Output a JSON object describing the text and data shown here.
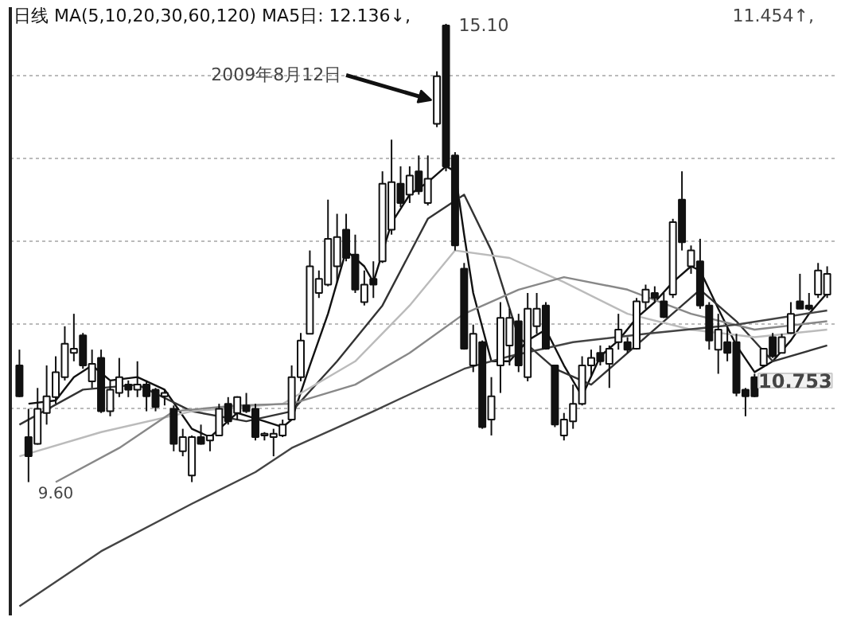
{
  "chart_data": {
    "type": "candlestick",
    "title": "日线 MA(5,10,20,30,60,120) MA5日: 12.136↓,",
    "annotations": [
      "11.454↑,",
      "2009年8月12日",
      "15.10",
      "9.60",
      "10.753"
    ],
    "categories": [
      null,
      null,
      null,
      null,
      null,
      null,
      null,
      null,
      null,
      null,
      null,
      null,
      null,
      null,
      null,
      null,
      null,
      null,
      null,
      null,
      null,
      null,
      null,
      null,
      null,
      null,
      null,
      null,
      null,
      null,
      null,
      null,
      null,
      null,
      null,
      null,
      null,
      null,
      null,
      null,
      null,
      null,
      null,
      null,
      null,
      null,
      null,
      null,
      null,
      null,
      null,
      null,
      null,
      null,
      null,
      null,
      null,
      null,
      null,
      null,
      null,
      null,
      null,
      null,
      null,
      null,
      null,
      null,
      null,
      null,
      null,
      null,
      null,
      null,
      null,
      null,
      null,
      null,
      null,
      null,
      null,
      null,
      null,
      null,
      null,
      null,
      null,
      null,
      null,
      null
    ],
    "ohlc": [
      [
        11.0,
        11.19,
        10.62,
        10.63
      ],
      [
        10.14,
        10.48,
        9.6,
        9.91
      ],
      [
        10.06,
        10.73,
        10.05,
        10.48
      ],
      [
        10.43,
        11.0,
        10.29,
        10.63
      ],
      [
        10.62,
        11.11,
        10.54,
        10.92
      ],
      [
        10.86,
        11.47,
        10.82,
        11.26
      ],
      [
        11.15,
        11.62,
        11.05,
        11.2
      ],
      [
        11.36,
        11.39,
        10.96,
        11.0
      ],
      [
        10.81,
        11.19,
        10.73,
        11.02
      ],
      [
        11.09,
        11.19,
        10.43,
        10.45
      ],
      [
        10.45,
        10.81,
        10.39,
        10.71
      ],
      [
        10.67,
        11.09,
        10.62,
        10.86
      ],
      [
        10.77,
        10.82,
        10.62,
        10.71
      ],
      [
        10.71,
        11.05,
        10.62,
        10.77
      ],
      [
        10.77,
        10.82,
        10.45,
        10.63
      ],
      [
        10.71,
        10.73,
        10.45,
        10.5
      ],
      [
        10.63,
        10.71,
        10.52,
        10.67
      ],
      [
        10.48,
        10.52,
        9.97,
        10.06
      ],
      [
        9.97,
        10.24,
        9.91,
        10.14
      ],
      [
        9.68,
        10.16,
        9.6,
        10.14
      ],
      [
        10.14,
        10.29,
        10.05,
        10.06
      ],
      [
        10.1,
        10.16,
        9.97,
        10.16
      ],
      [
        10.16,
        10.54,
        10.16,
        10.48
      ],
      [
        10.54,
        10.62,
        10.29,
        10.33
      ],
      [
        10.43,
        10.63,
        10.35,
        10.62
      ],
      [
        10.52,
        10.67,
        10.43,
        10.45
      ],
      [
        10.48,
        10.54,
        10.1,
        10.14
      ],
      [
        10.16,
        10.2,
        10.1,
        10.18
      ],
      [
        10.14,
        10.24,
        9.91,
        10.18
      ],
      [
        10.16,
        10.35,
        10.14,
        10.29
      ],
      [
        10.35,
        11.0,
        10.35,
        10.86
      ],
      [
        10.86,
        11.39,
        10.81,
        11.3
      ],
      [
        11.38,
        12.38,
        11.38,
        12.19
      ],
      [
        11.87,
        12.14,
        11.81,
        12.04
      ],
      [
        11.97,
        12.99,
        11.95,
        12.52
      ],
      [
        12.19,
        12.82,
        12.0,
        12.54
      ],
      [
        12.63,
        12.82,
        12.25,
        12.29
      ],
      [
        12.33,
        12.57,
        11.87,
        11.91
      ],
      [
        11.76,
        12.14,
        11.72,
        11.97
      ],
      [
        12.04,
        12.25,
        11.81,
        11.97
      ],
      [
        12.25,
        13.33,
        12.23,
        13.18
      ],
      [
        12.63,
        13.71,
        12.57,
        13.2
      ],
      [
        13.18,
        13.39,
        12.9,
        12.95
      ],
      [
        13.05,
        13.39,
        12.95,
        13.28
      ],
      [
        13.33,
        13.52,
        13.05,
        13.09
      ],
      [
        12.95,
        13.52,
        12.92,
        13.24
      ],
      [
        13.9,
        14.53,
        13.86,
        14.47
      ],
      [
        15.08,
        15.1,
        13.33,
        13.39
      ],
      [
        13.52,
        13.56,
        12.38,
        12.44
      ],
      [
        12.16,
        12.23,
        11.19,
        11.2
      ],
      [
        11.0,
        11.49,
        10.92,
        11.38
      ],
      [
        11.28,
        11.3,
        10.24,
        10.26
      ],
      [
        10.35,
        10.86,
        10.16,
        10.63
      ],
      [
        11.0,
        11.76,
        10.67,
        11.57
      ],
      [
        11.24,
        11.68,
        11.0,
        11.57
      ],
      [
        11.53,
        11.62,
        10.92,
        11.0
      ],
      [
        10.86,
        11.87,
        10.81,
        11.68
      ],
      [
        11.47,
        11.87,
        11.38,
        11.68
      ],
      [
        11.72,
        11.76,
        11.19,
        11.2
      ],
      [
        11.0,
        11.0,
        10.26,
        10.29
      ],
      [
        10.16,
        10.43,
        10.1,
        10.35
      ],
      [
        10.33,
        10.77,
        10.24,
        10.54
      ],
      [
        10.54,
        11.11,
        10.52,
        11.0
      ],
      [
        11.0,
        11.19,
        10.86,
        11.09
      ],
      [
        11.15,
        11.24,
        11.0,
        11.05
      ],
      [
        11.02,
        11.24,
        10.73,
        11.2
      ],
      [
        11.28,
        11.62,
        11.19,
        11.43
      ],
      [
        11.28,
        11.34,
        11.15,
        11.19
      ],
      [
        11.2,
        11.81,
        11.19,
        11.77
      ],
      [
        11.76,
        11.97,
        11.68,
        11.91
      ],
      [
        11.87,
        11.95,
        11.76,
        11.81
      ],
      [
        11.77,
        11.87,
        11.57,
        11.58
      ],
      [
        11.85,
        12.76,
        11.81,
        12.72
      ],
      [
        12.99,
        13.33,
        12.38,
        12.48
      ],
      [
        12.19,
        12.44,
        12.1,
        12.38
      ],
      [
        12.25,
        12.52,
        11.68,
        11.72
      ],
      [
        11.72,
        11.76,
        11.19,
        11.3
      ],
      [
        11.19,
        11.62,
        10.9,
        11.43
      ],
      [
        11.28,
        11.47,
        11.05,
        11.15
      ],
      [
        11.28,
        11.38,
        10.63,
        10.67
      ],
      [
        10.71,
        10.73,
        10.39,
        10.63
      ],
      [
        10.86,
        10.9,
        10.62,
        10.63
      ],
      [
        11.0,
        11.2,
        11.0,
        11.2
      ],
      [
        11.34,
        11.39,
        11.09,
        11.11
      ],
      [
        11.15,
        11.38,
        11.15,
        11.34
      ],
      [
        11.39,
        11.76,
        11.38,
        11.62
      ],
      [
        11.77,
        12.1,
        11.68,
        11.68
      ],
      [
        11.72,
        11.87,
        11.66,
        11.68
      ],
      [
        11.85,
        12.23,
        11.81,
        12.14
      ],
      [
        11.85,
        12.19,
        11.81,
        12.1
      ]
    ],
    "series": [
      {
        "type": "line",
        "color": "#111111",
        "values": [
          null,
          10.54,
          null,
          null,
          10.58,
          null,
          10.86,
          null,
          11.0,
          null,
          10.82,
          null,
          null,
          10.86,
          null,
          null,
          10.71,
          null,
          null,
          10.24,
          null,
          10.14,
          null,
          null,
          10.43,
          null,
          null,
          10.33,
          null,
          10.26,
          10.35,
          null,
          11.0,
          null,
          11.62,
          null,
          12.38,
          null,
          12.19,
          12.0,
          null,
          12.71,
          null,
          13.05,
          null,
          13.2,
          null,
          13.39,
          13.33,
          12.57,
          11.87,
          null,
          11.05,
          null,
          11.05,
          null,
          11.3,
          null,
          11.43,
          null,
          11.0,
          null,
          10.63,
          null,
          11.11,
          null,
          11.3,
          null,
          11.57,
          null,
          11.76,
          null,
          12.0,
          null,
          12.19,
          12.14,
          null,
          11.68,
          null,
          11.24,
          null,
          10.92,
          null,
          11.05,
          null,
          11.3,
          null,
          11.62,
          null,
          11.87
        ]
      },
      {
        "type": "line",
        "color": "#333333",
        "values": [
          10.29,
          null,
          null,
          null,
          null,
          null,
          null,
          10.71,
          null,
          null,
          null,
          null,
          null,
          10.77,
          null,
          null,
          null,
          null,
          null,
          10.45,
          null,
          null,
          null,
          null,
          null,
          10.33,
          null,
          null,
          null,
          null,
          10.45,
          null,
          null,
          null,
          null,
          11.05,
          null,
          null,
          null,
          null,
          11.72,
          null,
          null,
          null,
          null,
          12.76,
          null,
          null,
          null,
          13.05,
          null,
          null,
          12.38,
          null,
          null,
          11.34,
          null,
          null,
          null,
          10.96,
          null,
          null,
          null,
          10.77,
          null,
          null,
          null,
          11.15,
          null,
          null,
          null,
          11.53,
          null,
          null,
          null,
          11.91,
          null,
          null,
          null,
          11.53,
          null,
          null,
          null,
          11.05,
          null,
          null,
          null,
          null,
          null,
          11.24
        ]
      },
      {
        "type": "line",
        "color": "#bbbbbb",
        "values": [
          9.91,
          null,
          null,
          null,
          null,
          null,
          null,
          null,
          null,
          10.2,
          null,
          null,
          null,
          null,
          null,
          null,
          null,
          null,
          null,
          10.45,
          null,
          null,
          null,
          null,
          null,
          null,
          null,
          null,
          null,
          10.54,
          null,
          null,
          null,
          null,
          null,
          null,
          null,
          11.05,
          null,
          null,
          null,
          null,
          null,
          11.72,
          null,
          null,
          null,
          null,
          12.38,
          null,
          null,
          null,
          null,
          null,
          12.29,
          null,
          null,
          null,
          null,
          null,
          12.0,
          null,
          null,
          null,
          null,
          null,
          null,
          11.62,
          null,
          null,
          null,
          null,
          null,
          null,
          11.43,
          null,
          null,
          null,
          null,
          null,
          null,
          11.34,
          null,
          null,
          null,
          null,
          null,
          null,
          null,
          11.43
        ]
      },
      {
        "type": "line",
        "color": "#888888",
        "values": [
          null,
          null,
          null,
          null,
          9.6,
          null,
          null,
          null,
          null,
          null,
          null,
          10.01,
          null,
          null,
          null,
          null,
          null,
          10.45,
          null,
          null,
          null,
          null,
          null,
          null,
          10.52,
          null,
          null,
          null,
          null,
          null,
          10.54,
          null,
          null,
          null,
          null,
          null,
          null,
          10.77,
          null,
          null,
          null,
          null,
          null,
          11.15,
          null,
          null,
          null,
          null,
          null,
          11.62,
          null,
          null,
          null,
          null,
          null,
          11.91,
          null,
          null,
          null,
          null,
          12.06,
          null,
          null,
          null,
          null,
          null,
          null,
          11.91,
          null,
          null,
          null,
          null,
          null,
          null,
          11.62,
          null,
          null,
          null,
          null,
          null,
          null,
          11.43,
          null,
          null,
          null,
          null,
          null,
          null,
          null,
          11.53
        ]
      },
      {
        "type": "line",
        "color": "#444444",
        "values": [
          8.11,
          null,
          null,
          null,
          null,
          null,
          null,
          null,
          null,
          8.77,
          null,
          null,
          null,
          null,
          null,
          null,
          null,
          null,
          null,
          9.34,
          null,
          null,
          null,
          null,
          null,
          null,
          9.72,
          null,
          null,
          null,
          10.01,
          null,
          null,
          null,
          null,
          null,
          null,
          null,
          null,
          10.45,
          null,
          null,
          null,
          null,
          null,
          null,
          null,
          null,
          null,
          10.96,
          null,
          null,
          null,
          null,
          11.11,
          null,
          null,
          null,
          null,
          null,
          null,
          11.28,
          null,
          null,
          null,
          null,
          null,
          null,
          null,
          11.38,
          null,
          null,
          null,
          null,
          null,
          null,
          null,
          null,
          null,
          11.49,
          null,
          null,
          null,
          null,
          null,
          null,
          null,
          null,
          null,
          11.66
        ]
      }
    ],
    "ylim": [
      8.0,
      15.3
    ],
    "yticks": [
      {
        "value": 10.48,
        "label": null
      },
      {
        "value": 11.49,
        "label": null
      },
      {
        "value": 12.5,
        "label": null
      },
      {
        "value": 13.48,
        "label": null
      },
      {
        "value": 14.47,
        "label": null
      }
    ],
    "grid": "y",
    "tick_labels": false,
    "marker": "none",
    "line_style": "solid"
  }
}
